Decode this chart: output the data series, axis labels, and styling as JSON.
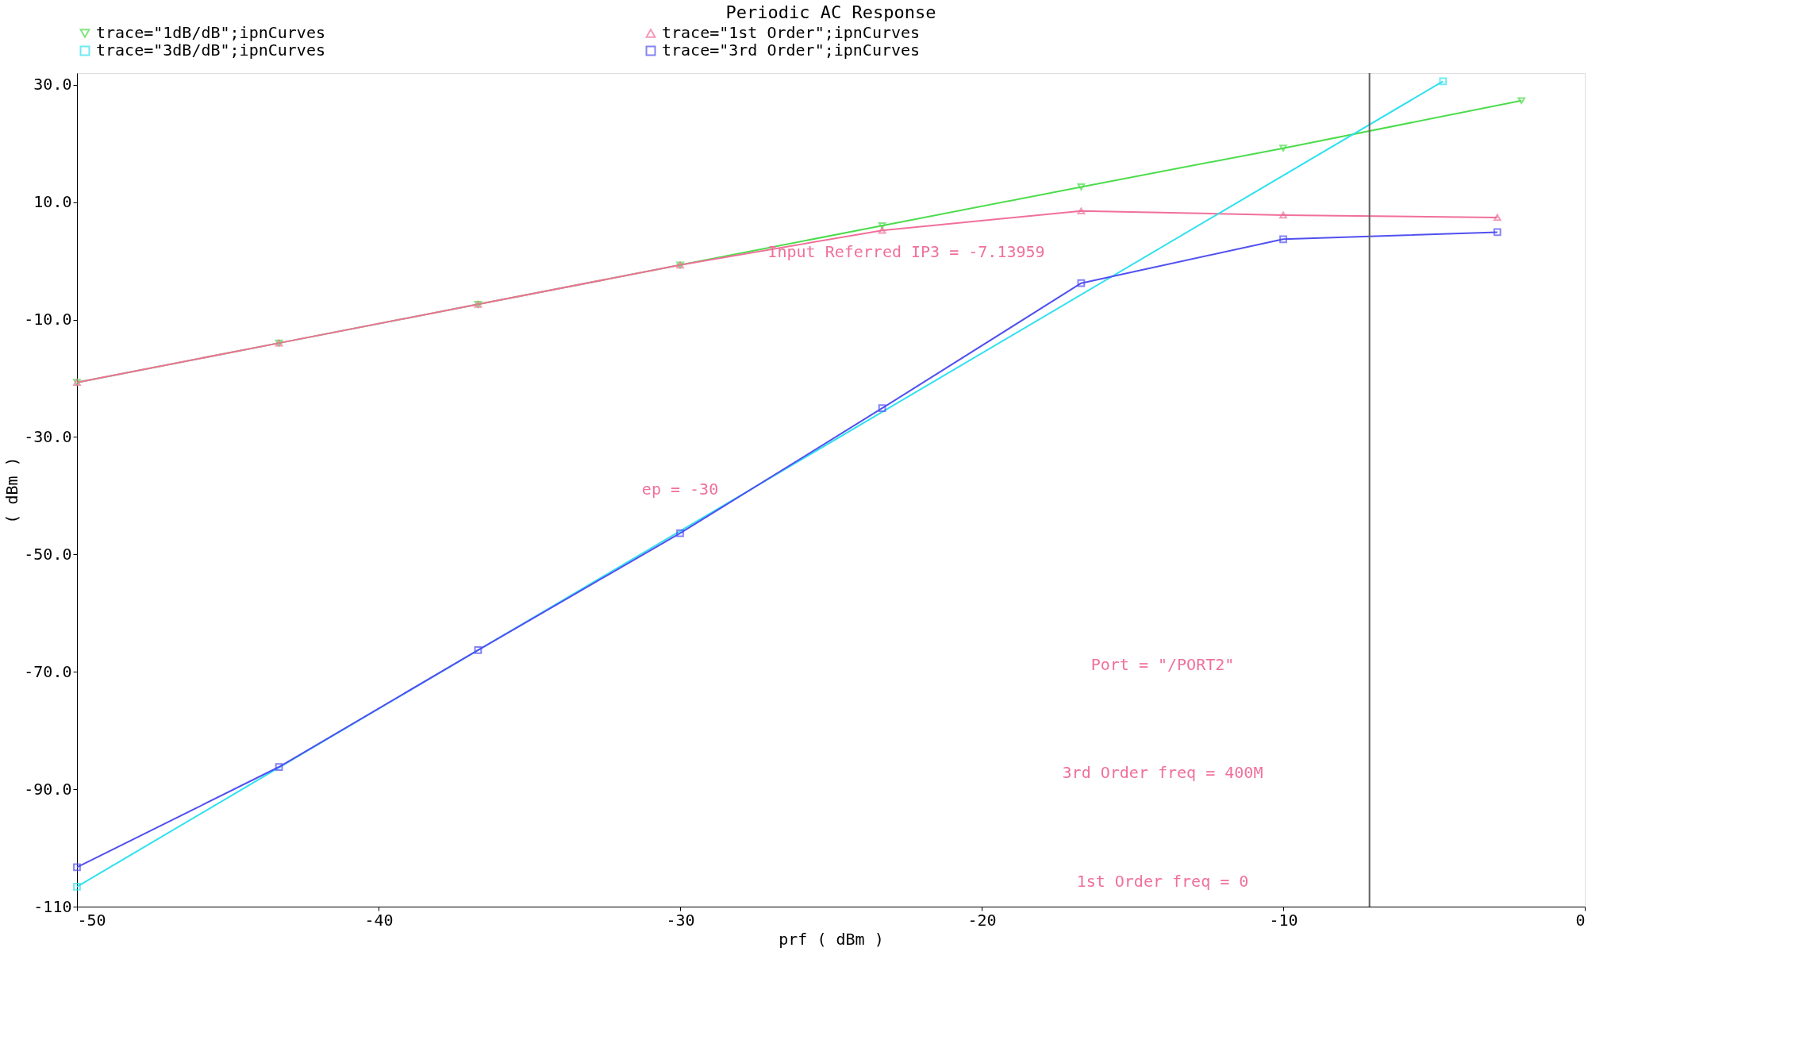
{
  "chart_data": {
    "type": "line",
    "title": "Periodic AC Response",
    "xlabel": "prf ( dBm )",
    "ylabel": "( dBm )",
    "xlim": [
      -50,
      0
    ],
    "ylim": [
      -110,
      32
    ],
    "xticks": [
      -50,
      -40,
      -30,
      -20,
      -10,
      0
    ],
    "yticks": [
      {
        "value": 30,
        "label": "30.0"
      },
      {
        "value": 10,
        "label": "10.0"
      },
      {
        "value": -10,
        "label": "-10.0"
      },
      {
        "value": -30,
        "label": "-30.0"
      },
      {
        "value": -50,
        "label": "-50.0"
      },
      {
        "value": -70,
        "label": "-70.0"
      },
      {
        "value": -90,
        "label": "-90.0"
      },
      {
        "value": -110,
        "label": "-110"
      }
    ],
    "grid": false,
    "legend": "top",
    "series": [
      {
        "name": "trace=\"1dB/dB\";ipnCurves",
        "color": "#4cdc4c",
        "marker": "triangle-down",
        "x": [
          -50,
          -43.3,
          -36.7,
          -30,
          -23.3,
          -16.7,
          -10,
          -2.1
        ],
        "values": [
          -20.7,
          -14,
          -7.4,
          -0.7,
          6,
          12.6,
          19.2,
          27.3
        ]
      },
      {
        "name": "trace=\"1st Order\";ipnCurves",
        "color": "#f0709a",
        "marker": "triangle-up",
        "x": [
          -50,
          -43.3,
          -36.7,
          -30,
          -23.3,
          -16.7,
          -10,
          -2.9
        ],
        "values": [
          -20.7,
          -14,
          -7.4,
          -0.7,
          5.2,
          8.5,
          7.8,
          7.4
        ]
      },
      {
        "name": "trace=\"3dB/dB\";ipnCurves",
        "color": "#30e0f0",
        "marker": "square",
        "x": [
          -50,
          -4.7
        ],
        "values": [
          -106.6,
          30.6
        ]
      },
      {
        "name": "trace=\"3rd Order\";ipnCurves",
        "color": "#5050f0",
        "marker": "square",
        "x": [
          -50,
          -43.3,
          -36.7,
          -30,
          -23.3,
          -16.7,
          -10,
          -2.9
        ],
        "values": [
          -103.3,
          -86.2,
          -66.3,
          -46.4,
          -25.1,
          -3.8,
          3.7,
          4.9
        ]
      }
    ],
    "ref_lines": [
      {
        "axis": "x",
        "value": -7.14,
        "color": "#606060"
      }
    ],
    "annotations": [
      "Input Referred IP3 = -7.13959",
      "ep = -30",
      "Port = \"/PORT2\"",
      "3rd Order freq = 400M",
      "1st Order freq = 0"
    ]
  }
}
